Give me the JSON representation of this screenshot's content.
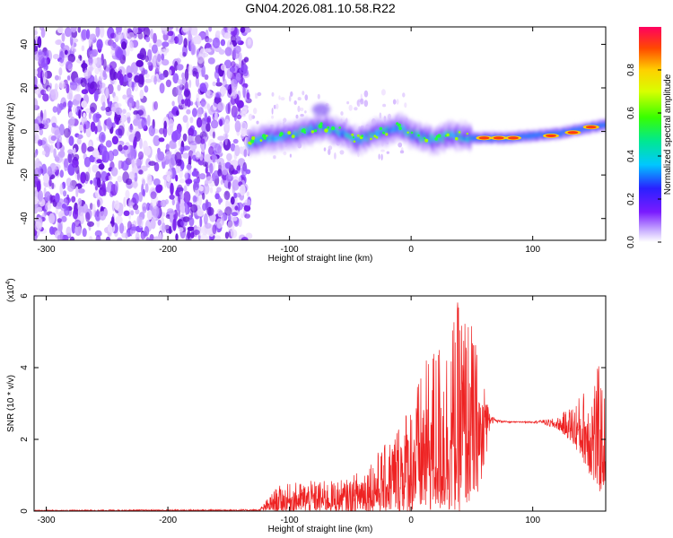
{
  "title": "GN04.2026.081.10.58.R22",
  "chart_data": [
    {
      "type": "heatmap",
      "xlabel": "Height of straight line (km)",
      "ylabel": "Frequency (Hz)",
      "xlim": [
        -310,
        160
      ],
      "ylim": [
        -50,
        48
      ],
      "xticks": [
        -300,
        -200,
        -100,
        0,
        100
      ],
      "yticks": [
        -40,
        -20,
        0,
        20,
        40
      ],
      "noise_region_x": [
        -310,
        -133
      ],
      "signal_track": {
        "x": [
          -133,
          -120,
          -100,
          -80,
          -70,
          -55,
          -45,
          -38,
          -30,
          -20,
          -10,
          0,
          10,
          20,
          30,
          40,
          50,
          60,
          80,
          100,
          120,
          140,
          160
        ],
        "y": [
          -5,
          -3,
          -2,
          1,
          2,
          -1,
          -4,
          -3,
          -1,
          0,
          2,
          -1,
          -3,
          -4,
          -2,
          -2,
          -3,
          -3,
          -3,
          -2,
          -1,
          1,
          3
        ]
      },
      "colorbar": {
        "label": "Normalized spectral amplitude",
        "range": [
          0.0,
          1.0
        ],
        "ticks": [
          "0.0",
          "0.2",
          "0.4",
          "0.6",
          "0.8"
        ]
      }
    },
    {
      "type": "line",
      "xlabel": "Height of straight line (km)",
      "ylabel": "SNR (10 * v/v)",
      "y_scale_note": "(x10",
      "y_scale_exp": "4",
      "xlim": [
        -310,
        160
      ],
      "ylim": [
        0,
        6
      ],
      "xticks": [
        -300,
        -200,
        -100,
        0,
        100
      ],
      "yticks": [
        0,
        2,
        4,
        6
      ],
      "color": "#ee2222",
      "envelope": {
        "x": [
          -310,
          -125,
          -110,
          -95,
          -80,
          -65,
          -50,
          -40,
          -30,
          -20,
          -10,
          0,
          10,
          20,
          30,
          40,
          50,
          60,
          65,
          70,
          80,
          90,
          100,
          110,
          120,
          130,
          140,
          150,
          155,
          160
        ],
        "lower": [
          0,
          0,
          0,
          0,
          0,
          0,
          0,
          0,
          0,
          0,
          0,
          0,
          0,
          0,
          0,
          0,
          0.3,
          0.8,
          2.4,
          2.45,
          2.45,
          2.45,
          2.45,
          2.4,
          2.3,
          2.0,
          1.5,
          0.8,
          0.5,
          0.8
        ],
        "upper": [
          0.03,
          0.05,
          0.7,
          0.8,
          0.85,
          0.85,
          0.9,
          1.3,
          1.6,
          1.9,
          2.6,
          3.2,
          4.0,
          4.8,
          5.0,
          6.0,
          5.3,
          3.5,
          2.7,
          2.55,
          2.5,
          2.5,
          2.5,
          2.55,
          2.6,
          2.9,
          3.3,
          3.9,
          4.1,
          3.0
        ]
      }
    }
  ]
}
